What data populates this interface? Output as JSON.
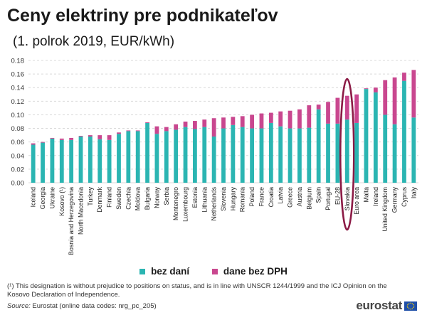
{
  "title": "Ceny elektriny pre podnikateľov",
  "subtitle": "(1. polrok 2019, EUR/kWh)",
  "colors": {
    "base": "#2bb5b2",
    "tax": "#c9478f",
    "highlight": "#8b1a45",
    "grid": "#d9d9d9"
  },
  "legend": {
    "base_label": "bez daní",
    "tax_label": "dane bez DPH"
  },
  "footnote": "(¹) This designation is without  prejudice to positions on status, and is in line with UNSCR 1244/1999 and the ICJ Opinion on the Kosovo Declaration of Independence.",
  "source": {
    "label": "Source:",
    "text": "Eurostat (online data codes: nrg_pc_205)"
  },
  "logo": {
    "text": "eurostat",
    "icon": "eu-flag-icon"
  },
  "chart_data": {
    "type": "bar",
    "stacked": true,
    "categories": [
      "Iceland",
      "Georgia",
      "Ukraine",
      "Kosovo (¹)",
      "Bosnia and Herzegovina",
      "North Macedonia",
      "Turkey",
      "Denmark",
      "Finland",
      "Sweden",
      "Czechia",
      "Moldova",
      "Bulgaria",
      "Norway",
      "Serbia",
      "Montenegro",
      "Luxembourg",
      "Estonia",
      "Lithuania",
      "Netherlands",
      "Slovenia",
      "Hungary",
      "Romania",
      "Poland",
      "France",
      "Croatia",
      "Latvia",
      "Greece",
      "Austria",
      "Belgium",
      "Spain",
      "Portugal",
      "EU-28",
      "Slovakia",
      "Euro area",
      "Malta",
      "Ireland",
      "United Kingdom",
      "Germany",
      "Cyprus",
      "Italy"
    ],
    "series": [
      {
        "name": "bez daní",
        "values": [
          0.056,
          0.059,
          0.065,
          0.063,
          0.063,
          0.068,
          0.068,
          0.064,
          0.063,
          0.072,
          0.076,
          0.076,
          0.088,
          0.072,
          0.076,
          0.078,
          0.082,
          0.079,
          0.082,
          0.068,
          0.08,
          0.085,
          0.082,
          0.08,
          0.08,
          0.088,
          0.083,
          0.08,
          0.08,
          0.081,
          0.108,
          0.087,
          0.087,
          0.093,
          0.088,
          0.138,
          0.133,
          0.1,
          0.086,
          0.15,
          0.096
        ]
      },
      {
        "name": "dane bez DPH",
        "values": [
          0.002,
          0.001,
          0.001,
          0.002,
          0.003,
          0.001,
          0.002,
          0.006,
          0.007,
          0.002,
          0.001,
          0.001,
          0.001,
          0.011,
          0.006,
          0.008,
          0.008,
          0.012,
          0.011,
          0.027,
          0.016,
          0.012,
          0.016,
          0.02,
          0.022,
          0.015,
          0.022,
          0.026,
          0.028,
          0.033,
          0.007,
          0.032,
          0.038,
          0.035,
          0.042,
          0.001,
          0.007,
          0.051,
          0.069,
          0.012,
          0.07
        ]
      }
    ],
    "ylim": [
      0,
      0.18
    ],
    "yticks": [
      "0.00",
      "0.02",
      "0.04",
      "0.06",
      "0.08",
      "0.10",
      "0.12",
      "0.14",
      "0.16",
      "0.18"
    ],
    "grid": "horizontal dashed",
    "legend_position": "bottom",
    "highlight": "Slovakia"
  }
}
